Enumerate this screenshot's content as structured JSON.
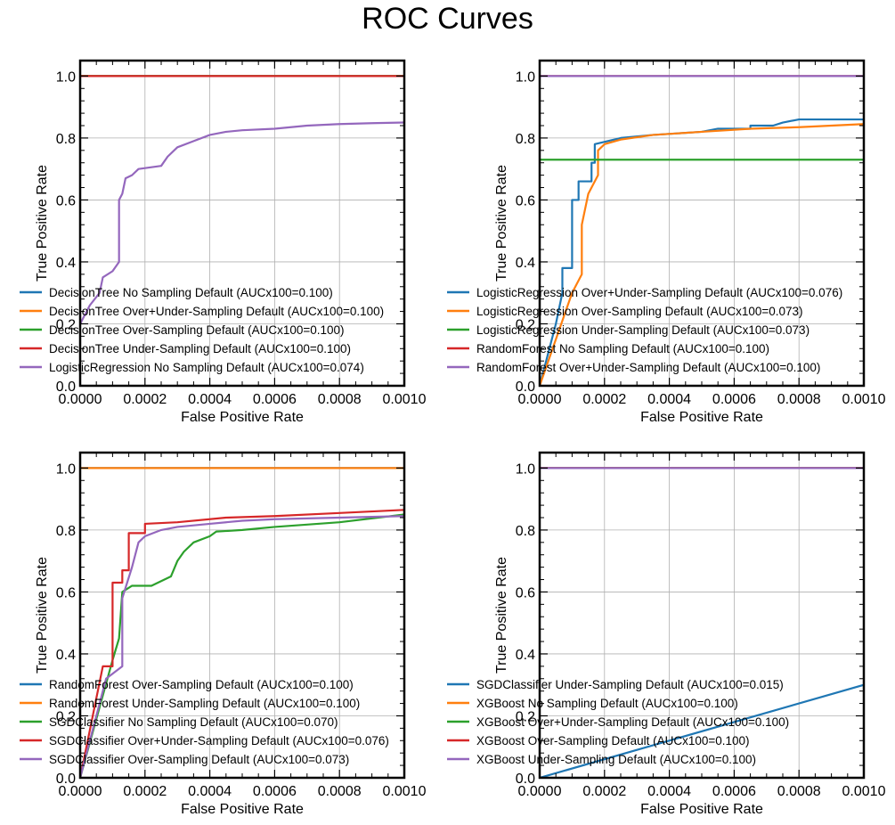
{
  "figure": {
    "title": "ROC Curves"
  },
  "colors": {
    "C0": "#1f77b4",
    "C1": "#ff7f0e",
    "C2": "#2ca02c",
    "C3": "#d62728",
    "C4": "#9467bd",
    "grid": "#b0b0b0"
  },
  "chart_data": [
    {
      "type": "line",
      "xlabel": "False Positive Rate",
      "ylabel": "True Positive Rate",
      "xlim": [
        0,
        0.001
      ],
      "ylim": [
        0,
        1.05
      ],
      "xticks": [
        "0.0000",
        "0.0002",
        "0.0004",
        "0.0006",
        "0.0008",
        "0.0010"
      ],
      "yticks": [
        "0.0",
        "0.2",
        "0.4",
        "0.6",
        "0.8",
        "1.0"
      ],
      "grid": true,
      "legend": "lower-left",
      "series": [
        {
          "name": "DecisionTree No Sampling Default (AUCx100=0.100)",
          "color": "C0",
          "points": [
            [
              0,
              1.0
            ],
            [
              0.001,
              1.0
            ]
          ]
        },
        {
          "name": "DecisionTree Over+Under-Sampling Default (AUCx100=0.100)",
          "color": "C1",
          "points": [
            [
              0,
              1.0
            ],
            [
              0.001,
              1.0
            ]
          ]
        },
        {
          "name": "DecisionTree Over-Sampling Default (AUCx100=0.100)",
          "color": "C2",
          "points": [
            [
              0,
              1.0
            ],
            [
              0.001,
              1.0
            ]
          ]
        },
        {
          "name": "DecisionTree Under-Sampling Default (AUCx100=0.100)",
          "color": "C3",
          "points": [
            [
              0,
              1.0
            ],
            [
              0.001,
              1.0
            ]
          ]
        },
        {
          "name": "LogisticRegression No Sampling Default (AUCx100=0.074)",
          "color": "C4",
          "points": [
            [
              0,
              0.2
            ],
            [
              3e-05,
              0.26
            ],
            [
              6e-05,
              0.3
            ],
            [
              7e-05,
              0.35
            ],
            [
              0.0001,
              0.37
            ],
            [
              0.00012,
              0.4
            ],
            [
              0.00012,
              0.6
            ],
            [
              0.00013,
              0.62
            ],
            [
              0.00014,
              0.67
            ],
            [
              0.00016,
              0.68
            ],
            [
              0.00018,
              0.7
            ],
            [
              0.00025,
              0.71
            ],
            [
              0.00027,
              0.74
            ],
            [
              0.0003,
              0.77
            ],
            [
              0.00035,
              0.79
            ],
            [
              0.0004,
              0.81
            ],
            [
              0.00045,
              0.82
            ],
            [
              0.0005,
              0.825
            ],
            [
              0.0006,
              0.83
            ],
            [
              0.0007,
              0.84
            ],
            [
              0.0008,
              0.845
            ],
            [
              0.0009,
              0.848
            ],
            [
              0.001,
              0.85
            ]
          ]
        }
      ]
    },
    {
      "type": "line",
      "xlabel": "False Positive Rate",
      "ylabel": "True Positive Rate",
      "xlim": [
        0,
        0.001
      ],
      "ylim": [
        0,
        1.05
      ],
      "xticks": [
        "0.0000",
        "0.0002",
        "0.0004",
        "0.0006",
        "0.0008",
        "0.0010"
      ],
      "yticks": [
        "0.0",
        "0.2",
        "0.4",
        "0.6",
        "0.8",
        "1.0"
      ],
      "grid": true,
      "legend": "lower-left",
      "series": [
        {
          "name": "LogisticRegression Over+Under-Sampling Default (AUCx100=0.076)",
          "color": "C0",
          "points": [
            [
              0,
              0
            ],
            [
              5e-05,
              0.2
            ],
            [
              7e-05,
              0.3
            ],
            [
              7e-05,
              0.38
            ],
            [
              0.0001,
              0.38
            ],
            [
              0.0001,
              0.6
            ],
            [
              0.00012,
              0.6
            ],
            [
              0.00012,
              0.66
            ],
            [
              0.00016,
              0.66
            ],
            [
              0.00016,
              0.72
            ],
            [
              0.00017,
              0.72
            ],
            [
              0.00017,
              0.78
            ],
            [
              0.00025,
              0.8
            ],
            [
              0.00035,
              0.81
            ],
            [
              0.0005,
              0.82
            ],
            [
              0.00055,
              0.83
            ],
            [
              0.00065,
              0.83
            ],
            [
              0.00065,
              0.84
            ],
            [
              0.00072,
              0.84
            ],
            [
              0.00075,
              0.85
            ],
            [
              0.0008,
              0.86
            ],
            [
              0.001,
              0.86
            ]
          ]
        },
        {
          "name": "LogisticRegression Over-Sampling Default (AUCx100=0.073)",
          "color": "C1",
          "points": [
            [
              0,
              0
            ],
            [
              0.0001,
              0.3
            ],
            [
              0.00013,
              0.36
            ],
            [
              0.00013,
              0.52
            ],
            [
              0.00015,
              0.62
            ],
            [
              0.00018,
              0.68
            ],
            [
              0.00018,
              0.76
            ],
            [
              0.0002,
              0.78
            ],
            [
              0.00025,
              0.795
            ],
            [
              0.00035,
              0.81
            ],
            [
              0.0005,
              0.82
            ],
            [
              0.00065,
              0.83
            ],
            [
              0.0008,
              0.835
            ],
            [
              0.001,
              0.845
            ]
          ]
        },
        {
          "name": "LogisticRegression Under-Sampling Default (AUCx100=0.073)",
          "color": "C2",
          "points": [
            [
              0,
              0.73
            ],
            [
              0.001,
              0.73
            ]
          ]
        },
        {
          "name": "RandomForest No Sampling Default (AUCx100=0.100)",
          "color": "C3",
          "points": [
            [
              0,
              1.0
            ],
            [
              0.001,
              1.0
            ]
          ]
        },
        {
          "name": "RandomForest Over+Under-Sampling Default (AUCx100=0.100)",
          "color": "C4",
          "points": [
            [
              0,
              1.0
            ],
            [
              0.001,
              1.0
            ]
          ]
        }
      ]
    },
    {
      "type": "line",
      "xlabel": "False Positive Rate",
      "ylabel": "True Positive Rate",
      "xlim": [
        0,
        0.001
      ],
      "ylim": [
        0,
        1.05
      ],
      "xticks": [
        "0.0000",
        "0.0002",
        "0.0004",
        "0.0006",
        "0.0008",
        "0.0010"
      ],
      "yticks": [
        "0.0",
        "0.2",
        "0.4",
        "0.6",
        "0.8",
        "1.0"
      ],
      "grid": true,
      "legend": "lower-left",
      "series": [
        {
          "name": "RandomForest Over-Sampling Default (AUCx100=0.100)",
          "color": "C0",
          "points": [
            [
              0,
              1.0
            ],
            [
              0.001,
              1.0
            ]
          ]
        },
        {
          "name": "RandomForest Under-Sampling Default (AUCx100=0.100)",
          "color": "C1",
          "points": [
            [
              0,
              1.0
            ],
            [
              0.001,
              1.0
            ]
          ]
        },
        {
          "name": "SGDClassifier No Sampling Default (AUCx100=0.070)",
          "color": "C2",
          "points": [
            [
              0,
              0
            ],
            [
              0.0001,
              0.38
            ],
            [
              0.00012,
              0.45
            ],
            [
              0.00013,
              0.6
            ],
            [
              0.00016,
              0.62
            ],
            [
              0.00022,
              0.62
            ],
            [
              0.00028,
              0.65
            ],
            [
              0.0003,
              0.7
            ],
            [
              0.00032,
              0.73
            ],
            [
              0.00035,
              0.76
            ],
            [
              0.0004,
              0.78
            ],
            [
              0.00042,
              0.795
            ],
            [
              0.0005,
              0.8
            ],
            [
              0.0006,
              0.81
            ],
            [
              0.0008,
              0.825
            ],
            [
              0.001,
              0.85
            ]
          ]
        },
        {
          "name": "SGDClassifier Over+Under-Sampling Default (AUCx100=0.076)",
          "color": "C3",
          "points": [
            [
              0,
              0
            ],
            [
              7e-05,
              0.36
            ],
            [
              0.0001,
              0.36
            ],
            [
              0.0001,
              0.63
            ],
            [
              0.00013,
              0.63
            ],
            [
              0.00013,
              0.67
            ],
            [
              0.00015,
              0.67
            ],
            [
              0.00015,
              0.79
            ],
            [
              0.0002,
              0.79
            ],
            [
              0.0002,
              0.82
            ],
            [
              0.0003,
              0.825
            ],
            [
              0.00045,
              0.84
            ],
            [
              0.0006,
              0.845
            ],
            [
              0.0008,
              0.855
            ],
            [
              0.001,
              0.865
            ]
          ]
        },
        {
          "name": "SGDClassifier Over-Sampling Default (AUCx100=0.073)",
          "color": "C4",
          "points": [
            [
              0,
              0
            ],
            [
              8e-05,
              0.32
            ],
            [
              0.00013,
              0.36
            ],
            [
              0.00013,
              0.58
            ],
            [
              0.00016,
              0.68
            ],
            [
              0.00018,
              0.76
            ],
            [
              0.0002,
              0.78
            ],
            [
              0.00025,
              0.8
            ],
            [
              0.0003,
              0.81
            ],
            [
              0.0004,
              0.82
            ],
            [
              0.0005,
              0.83
            ],
            [
              0.0006,
              0.835
            ],
            [
              0.0008,
              0.84
            ],
            [
              0.001,
              0.845
            ]
          ]
        }
      ]
    },
    {
      "type": "line",
      "xlabel": "False Positive Rate",
      "ylabel": "True Positive Rate",
      "xlim": [
        0,
        0.001
      ],
      "ylim": [
        0,
        1.05
      ],
      "xticks": [
        "0.0000",
        "0.0002",
        "0.0004",
        "0.0006",
        "0.0008",
        "0.0010"
      ],
      "yticks": [
        "0.0",
        "0.2",
        "0.4",
        "0.6",
        "0.8",
        "1.0"
      ],
      "grid": true,
      "legend": "lower-left",
      "series": [
        {
          "name": "SGDClassifier Under-Sampling Default (AUCx100=0.015)",
          "color": "C0",
          "points": [
            [
              0,
              0
            ],
            [
              0.001,
              0.3
            ]
          ]
        },
        {
          "name": "XGBoost No Sampling Default (AUCx100=0.100)",
          "color": "C1",
          "points": [
            [
              0,
              1.0
            ],
            [
              0.001,
              1.0
            ]
          ]
        },
        {
          "name": "XGBoost Over+Under-Sampling Default (AUCx100=0.100)",
          "color": "C2",
          "points": [
            [
              0,
              1.0
            ],
            [
              0.001,
              1.0
            ]
          ]
        },
        {
          "name": "XGBoost Over-Sampling Default (AUCx100=0.100)",
          "color": "C3",
          "points": [
            [
              0,
              1.0
            ],
            [
              0.001,
              1.0
            ]
          ]
        },
        {
          "name": "XGBoost Under-Sampling Default (AUCx100=0.100)",
          "color": "C4",
          "points": [
            [
              0,
              1.0
            ],
            [
              0.001,
              1.0
            ]
          ]
        }
      ]
    }
  ]
}
